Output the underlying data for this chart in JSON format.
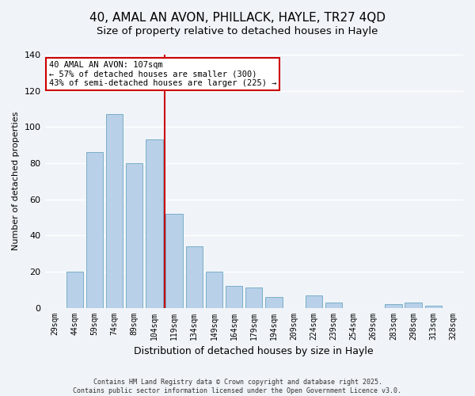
{
  "title": "40, AMAL AN AVON, PHILLACK, HAYLE, TR27 4QD",
  "subtitle": "Size of property relative to detached houses in Hayle",
  "xlabel": "Distribution of detached houses by size in Hayle",
  "ylabel": "Number of detached properties",
  "categories": [
    "29sqm",
    "44sqm",
    "59sqm",
    "74sqm",
    "89sqm",
    "104sqm",
    "119sqm",
    "134sqm",
    "149sqm",
    "164sqm",
    "179sqm",
    "194sqm",
    "209sqm",
    "224sqm",
    "239sqm",
    "254sqm",
    "269sqm",
    "283sqm",
    "298sqm",
    "313sqm",
    "328sqm"
  ],
  "values": [
    0,
    20,
    86,
    107,
    80,
    93,
    52,
    34,
    20,
    12,
    11,
    6,
    0,
    7,
    3,
    0,
    0,
    2,
    3,
    1,
    0
  ],
  "bar_color": "#b8d0e8",
  "bar_edge_color": "#7aafc8",
  "vline_color": "#cc0000",
  "annotation_text": "40 AMAL AN AVON: 107sqm\n← 57% of detached houses are smaller (300)\n43% of semi-detached houses are larger (225) →",
  "annotation_box_color": "#ffffff",
  "annotation_box_edge_color": "#cc0000",
  "ylim": [
    0,
    140
  ],
  "yticks": [
    0,
    20,
    40,
    60,
    80,
    100,
    120,
    140
  ],
  "background_color": "#f0f4f8",
  "grid_color": "#ffffff",
  "footer_line1": "Contains HM Land Registry data © Crown copyright and database right 2025.",
  "footer_line2": "Contains public sector information licensed under the Open Government Licence v3.0.",
  "title_fontsize": 11,
  "subtitle_fontsize": 9.5,
  "annotation_fontsize": 7.5,
  "ylabel_fontsize": 8,
  "xlabel_fontsize": 9,
  "tick_fontsize": 7,
  "footer_fontsize": 6
}
